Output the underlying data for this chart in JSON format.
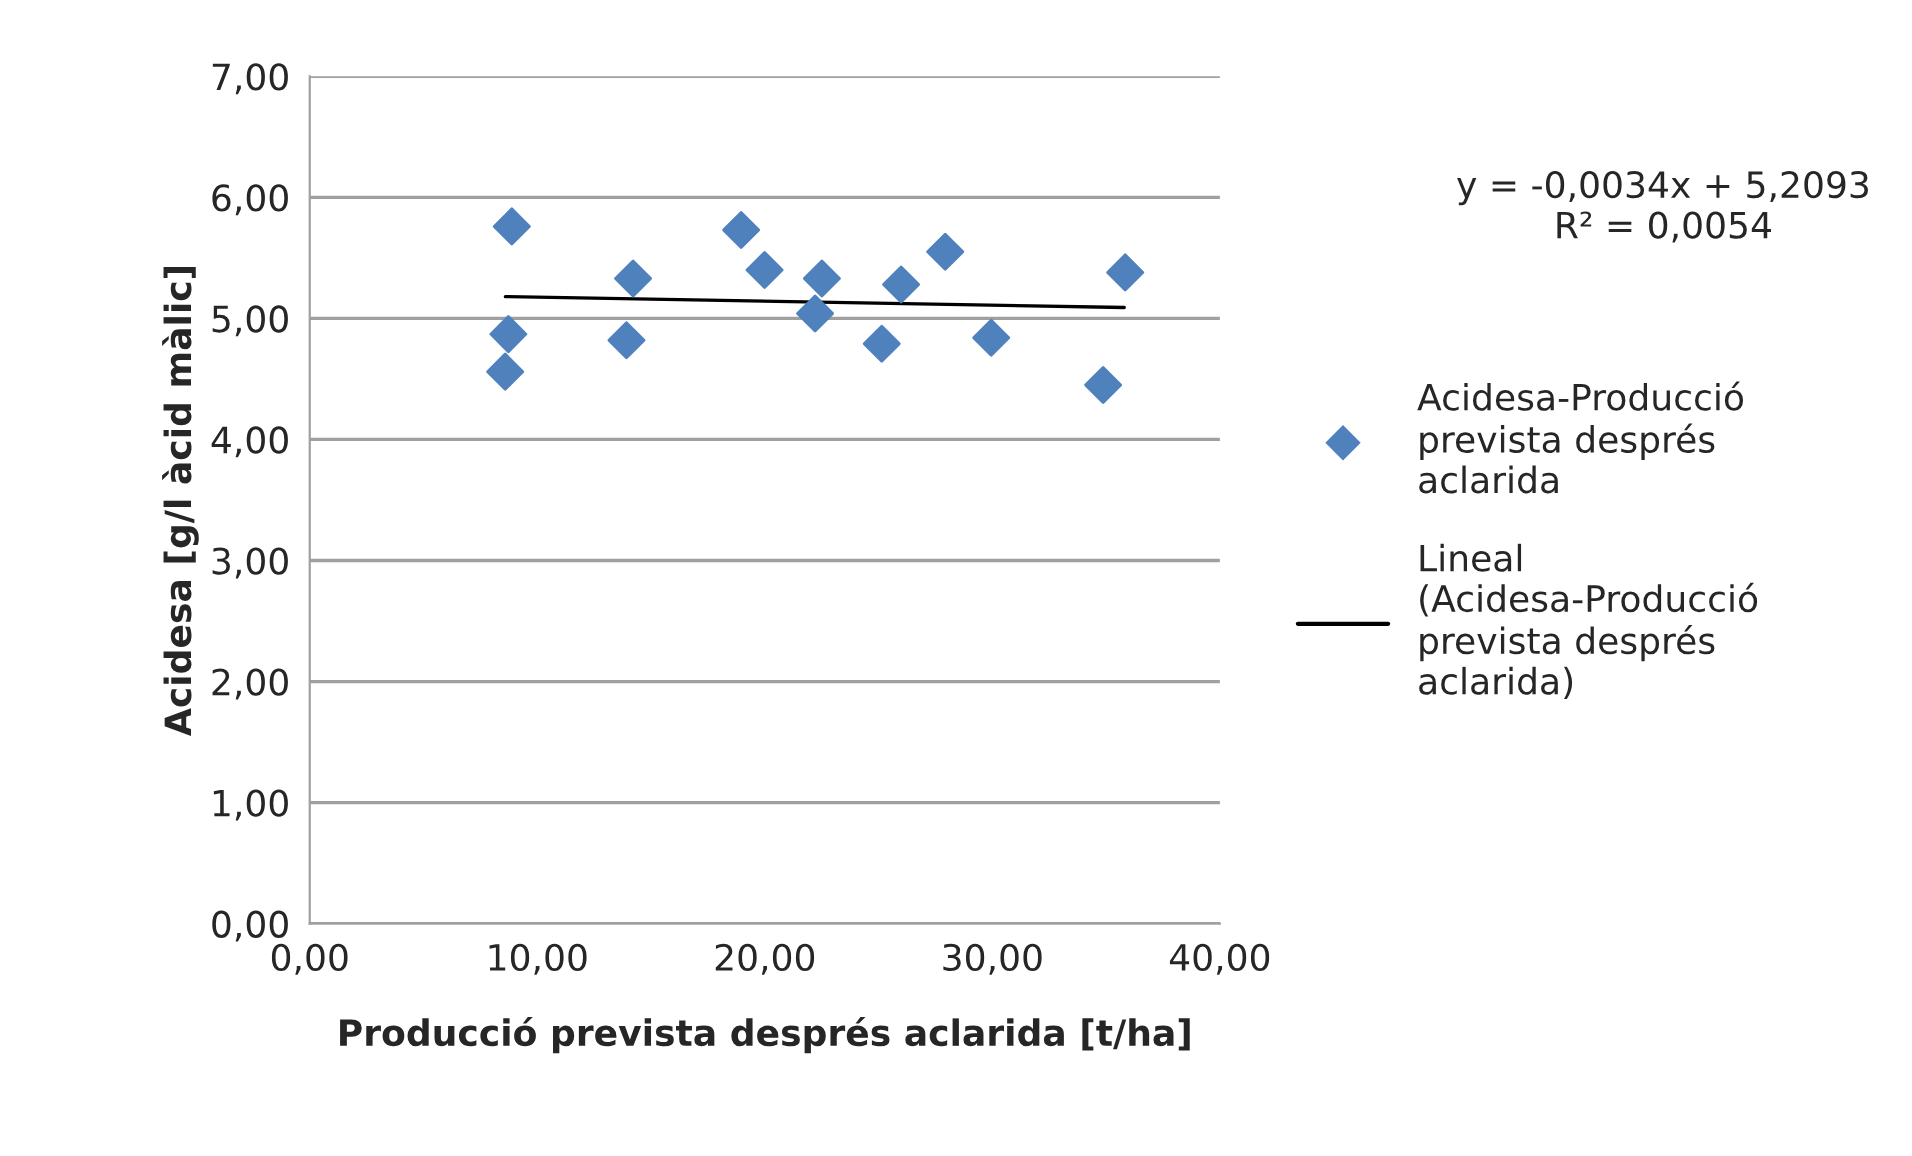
{
  "chart_data": {
    "type": "scatter",
    "xlabel": "Producció prevista després aclarida [t/ha]",
    "ylabel": "Acidesa [g/l àcid màlic]",
    "annotations": [
      "y = -0,0034x + 5,2093\nR² = 0,0054"
    ],
    "series": [
      {
        "name": "Acidesa-Producció prevista després aclarida",
        "color": "#4f81bd",
        "marker": "diamond",
        "x": [
          8.88,
          8.73,
          8.59,
          14.21,
          13.92,
          18.96,
          19.99,
          22.51,
          22.21,
          25.14,
          25.99,
          27.93,
          29.95,
          34.87,
          35.84
        ],
        "values": [
          5.76,
          4.87,
          4.56,
          5.33,
          4.82,
          5.73,
          5.4,
          5.33,
          5.04,
          4.79,
          5.28,
          5.55,
          4.84,
          4.45,
          5.38
        ]
      },
      {
        "name": "Lineal (Acidesa-Producció prevista després aclarida)",
        "type": "line",
        "color": "#000000",
        "marker": "none",
        "line_style": "solid",
        "x": [
          8.6,
          35.8
        ],
        "values": [
          5.18,
          5.09
        ]
      }
    ],
    "xlim": [
      0,
      40
    ],
    "xticks": [
      {
        "value": 0,
        "label": "0,00"
      },
      {
        "value": 10,
        "label": "10,00"
      },
      {
        "value": 20,
        "label": "20,00"
      },
      {
        "value": 30,
        "label": "30,00"
      },
      {
        "value": 40,
        "label": "40,00"
      }
    ],
    "ylim": [
      0,
      7
    ],
    "yticks": [
      {
        "value": 0,
        "label": "0,00"
      },
      {
        "value": 1,
        "label": "1,00"
      },
      {
        "value": 2,
        "label": "2,00"
      },
      {
        "value": 3,
        "label": "3,00"
      },
      {
        "value": 4,
        "label": "4,00"
      },
      {
        "value": 5,
        "label": "5,00"
      },
      {
        "value": 6,
        "label": "6,00"
      },
      {
        "value": 7,
        "label": "7,00"
      }
    ],
    "grid": "y",
    "legend": "right"
  }
}
